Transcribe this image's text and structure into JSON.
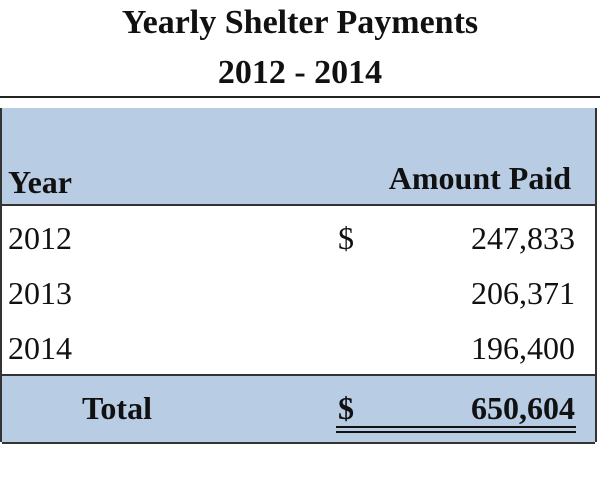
{
  "header": {
    "title": "Yearly Shelter Payments",
    "subtitle": "2012 - 2014"
  },
  "table": {
    "columns": [
      "Year",
      "Amount Paid"
    ],
    "rows": [
      {
        "year": "2012",
        "currency": "$",
        "amount": "247,833"
      },
      {
        "year": "2013",
        "amount": "206,371"
      },
      {
        "year": "2014",
        "amount": "196,400"
      }
    ],
    "total": {
      "label": "Total",
      "currency": "$",
      "amount": "650,604"
    }
  }
}
